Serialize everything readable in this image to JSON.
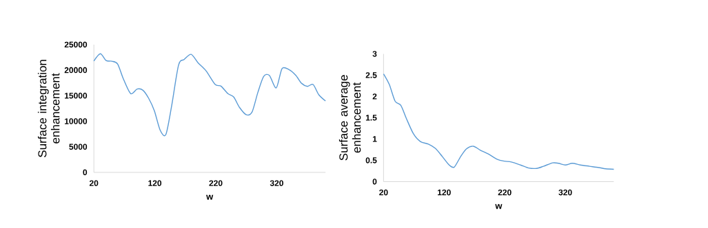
{
  "chart_data": [
    {
      "type": "line",
      "xlabel": "w",
      "ylabel": "Surface integration enhancement",
      "color": "#5b9bd5",
      "xlim": [
        20,
        400
      ],
      "ylim": [
        0,
        25000
      ],
      "xticks": [
        20,
        120,
        220,
        320
      ],
      "yticks": [
        0,
        5000,
        10000,
        15000,
        20000,
        25000
      ],
      "x": [
        20,
        30.6,
        40,
        49.4,
        58.9,
        68.3,
        80.4,
        91,
        100.4,
        109.8,
        119.2,
        128.7,
        138,
        147.5,
        158.9,
        168.3,
        179.6,
        190.9,
        204,
        219,
        228.5,
        239.8,
        249.4,
        258.8,
        270.2,
        279.6,
        289,
        298.5,
        307.9,
        319.2,
        328.7,
        340,
        351.3,
        360.8,
        370.2,
        379.6,
        389,
        400
      ],
      "values": [
        21790,
        23210,
        21880,
        21740,
        21200,
        18300,
        15400,
        16300,
        16070,
        14500,
        12050,
        8260,
        7370,
        12950,
        20980,
        22100,
        23080,
        21430,
        19870,
        17190,
        16880,
        15400,
        14730,
        12720,
        11250,
        11830,
        15630,
        18750,
        18970,
        16520,
        20310,
        20090,
        18970,
        17410,
        16830,
        17190,
        15180,
        13970
      ]
    },
    {
      "type": "line",
      "xlabel": "w",
      "ylabel": "Surface average enhancement",
      "color": "#5b9bd5",
      "xlim": [
        20,
        400
      ],
      "ylim": [
        0,
        3
      ],
      "xticks": [
        20,
        120,
        220,
        320
      ],
      "yticks": [
        0,
        0.5,
        1,
        1.5,
        2,
        2.5,
        3
      ],
      "x": [
        20,
        29.5,
        39,
        48.5,
        58,
        69.4,
        80.8,
        94,
        105.5,
        116.9,
        128.3,
        136.6,
        147.3,
        156.8,
        168.2,
        179.5,
        192.8,
        208,
        219.4,
        230.8,
        246,
        259.3,
        272.6,
        284,
        299.2,
        308.7,
        320,
        331.5,
        344.8,
        359.9,
        375.1,
        386.5,
        400
      ],
      "values": [
        2.53,
        2.28,
        1.89,
        1.79,
        1.47,
        1.12,
        0.94,
        0.88,
        0.78,
        0.59,
        0.39,
        0.34,
        0.59,
        0.77,
        0.83,
        0.74,
        0.65,
        0.52,
        0.48,
        0.46,
        0.39,
        0.32,
        0.31,
        0.36,
        0.44,
        0.43,
        0.39,
        0.43,
        0.39,
        0.36,
        0.33,
        0.3,
        0.29
      ]
    }
  ]
}
